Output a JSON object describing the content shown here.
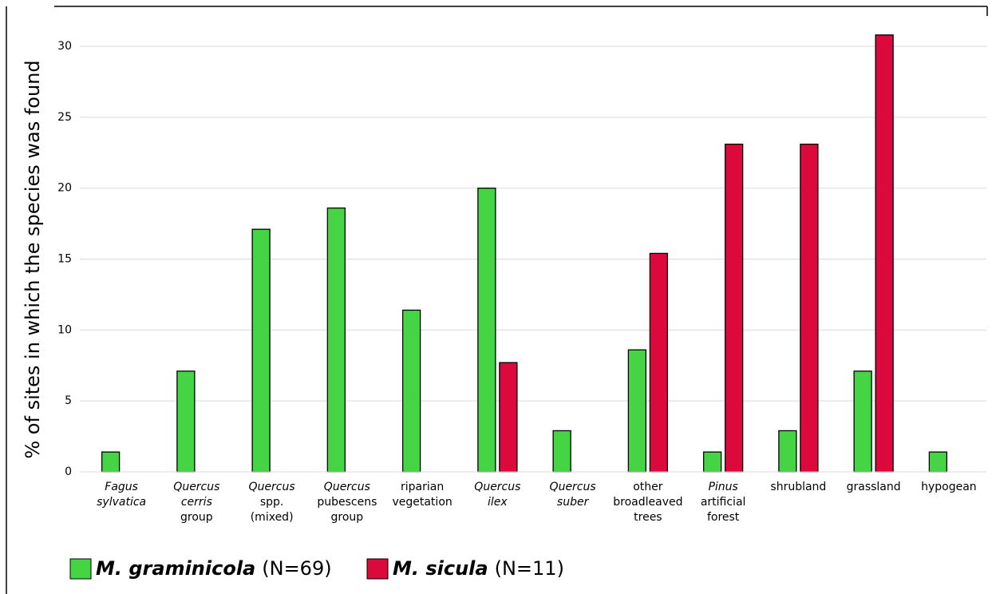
{
  "chart_data": {
    "type": "bar",
    "y_label": "% of sites in which the species was found",
    "categories": [
      [
        "Fagus",
        "sylvatica"
      ],
      [
        "Quercus",
        "cerris",
        "group"
      ],
      [
        "Quercus",
        "spp.",
        "(mixed)"
      ],
      [
        "Quercus",
        "pubescens",
        "group"
      ],
      [
        "riparian",
        "vegetation"
      ],
      [
        "Quercus",
        "ilex"
      ],
      [
        "Quercus",
        "suber"
      ],
      [
        "other",
        "broadleaved",
        "trees"
      ],
      [
        "Pinus",
        "artificial",
        "forest"
      ],
      [
        "shrubland"
      ],
      [
        "grassland"
      ],
      [
        "hypogean"
      ]
    ],
    "italic_lines": [
      2,
      2,
      1,
      1,
      0,
      2,
      2,
      0,
      1,
      0,
      0,
      0
    ],
    "series": [
      {
        "name": "M. graminicola",
        "n_label": "(N=69)",
        "color": "#44d444",
        "values": [
          1.4,
          7.1,
          17.1,
          18.6,
          11.4,
          20,
          2.9,
          8.6,
          1.4,
          2.9,
          7.1,
          1.4
        ]
      },
      {
        "name": "M. sicula",
        "n_label": "(N=11)",
        "color": "#dc0a3c",
        "values": [
          null,
          null,
          null,
          null,
          null,
          7.7,
          null,
          15.4,
          23.1,
          23.1,
          30.8,
          null
        ]
      }
    ],
    "ylim": [
      0,
      30
    ],
    "yticks": [
      0,
      5,
      10,
      15,
      20,
      25,
      30
    ],
    "grid": true
  }
}
